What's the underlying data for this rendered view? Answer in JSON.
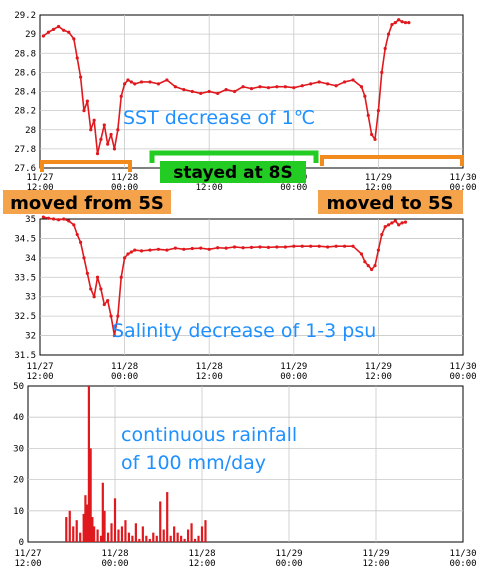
{
  "colors": {
    "series": "#e0191e",
    "annotation_blue": "#1e90ff",
    "bracket_orange": "#f28a1d",
    "label_orange": "#f5a34a",
    "label_green": "#22cc22",
    "grid": "#c8c8c8"
  },
  "x_ticks": [
    {
      "x": 0,
      "line1": "11/27",
      "line2": "12:00"
    },
    {
      "x": 0.5,
      "line1": "11/28",
      "line2": "00:00"
    },
    {
      "x": 1.0,
      "line1": "11/28",
      "line2": "12:00"
    },
    {
      "x": 1.5,
      "line1": "11/29",
      "line2": "00:00"
    },
    {
      "x": 2.0,
      "line1": "11/29",
      "line2": "12:00"
    },
    {
      "x": 2.5,
      "line1": "11/30",
      "line2": "00:00"
    }
  ],
  "x_ticks_bottom": [
    {
      "x": 0,
      "line1": "11/27",
      "line2": "12:00"
    },
    {
      "x": 0.5,
      "line1": "11/28",
      "line2": "00:00"
    },
    {
      "x": 1.0,
      "line1": "11/28",
      "line2": "12:00"
    },
    {
      "x": 1.5,
      "line1": "11/29",
      "line2": "00:00"
    },
    {
      "x": 2.0,
      "line1": "11/29",
      "line2": "12:00"
    },
    {
      "x": 2.5,
      "line1": "11/30",
      "line2": "00:00"
    }
  ],
  "annotations": {
    "sst": "SST decrease of 1℃",
    "salinity": "Salinity decrease of 1-3 psu",
    "rain_line1": "continuous rainfall",
    "rain_line2": "of 100 mm/day",
    "stayed": "stayed at 8S",
    "moved_from": "moved from 5S",
    "moved_to": "moved to 5S"
  },
  "chart_data": [
    {
      "type": "scatter",
      "ylim": [
        27.6,
        29.2
      ],
      "yticks": [
        "27.6",
        "27.8",
        "28",
        "28.2",
        "28.4",
        "28.6",
        "28.8",
        "29",
        "29.2"
      ],
      "xlim": [
        0,
        2.5
      ],
      "series": [
        {
          "x": [
            0.02,
            0.05,
            0.08,
            0.11,
            0.14,
            0.17,
            0.2,
            0.22,
            0.24,
            0.26,
            0.28,
            0.3,
            0.32,
            0.34,
            0.36,
            0.38,
            0.4,
            0.42,
            0.44,
            0.46,
            0.48,
            0.5,
            0.52,
            0.54,
            0.56,
            0.6,
            0.65,
            0.7,
            0.75,
            0.8,
            0.85,
            0.9,
            0.95,
            1.0,
            1.05,
            1.1,
            1.15,
            1.2,
            1.25,
            1.3,
            1.35,
            1.4,
            1.45,
            1.5,
            1.55,
            1.6,
            1.65,
            1.7,
            1.75,
            1.8,
            1.85,
            1.9,
            1.92,
            1.94,
            1.96,
            1.98,
            2.0,
            2.02,
            2.04,
            2.06,
            2.08,
            2.1,
            2.12,
            2.14,
            2.16,
            2.18
          ],
          "y": [
            28.98,
            29.02,
            29.05,
            29.08,
            29.04,
            29.02,
            28.95,
            28.75,
            28.55,
            28.2,
            28.3,
            28.0,
            28.1,
            27.75,
            27.9,
            28.05,
            27.85,
            27.95,
            27.8,
            28.0,
            28.35,
            28.48,
            28.52,
            28.5,
            28.48,
            28.5,
            28.5,
            28.48,
            28.52,
            28.45,
            28.42,
            28.4,
            28.38,
            28.4,
            28.38,
            28.42,
            28.4,
            28.45,
            28.43,
            28.45,
            28.44,
            28.45,
            28.45,
            28.44,
            28.46,
            28.48,
            28.5,
            28.48,
            28.46,
            28.5,
            28.52,
            28.45,
            28.35,
            28.15,
            27.95,
            27.9,
            28.2,
            28.6,
            28.85,
            29.0,
            29.1,
            29.12,
            29.15,
            29.13,
            29.12,
            29.12
          ]
        }
      ]
    },
    {
      "type": "scatter",
      "ylim": [
        31.5,
        35.0
      ],
      "yticks": [
        "31.5",
        "32",
        "32.5",
        "33",
        "33.5",
        "34",
        "34.5",
        "35"
      ],
      "xlim": [
        0,
        2.5
      ],
      "series": [
        {
          "x": [
            0.02,
            0.05,
            0.08,
            0.11,
            0.14,
            0.17,
            0.2,
            0.22,
            0.24,
            0.26,
            0.28,
            0.3,
            0.32,
            0.34,
            0.36,
            0.38,
            0.4,
            0.42,
            0.44,
            0.46,
            0.48,
            0.5,
            0.52,
            0.54,
            0.56,
            0.6,
            0.65,
            0.7,
            0.75,
            0.8,
            0.85,
            0.9,
            0.95,
            1.0,
            1.05,
            1.1,
            1.15,
            1.2,
            1.25,
            1.3,
            1.35,
            1.4,
            1.45,
            1.5,
            1.55,
            1.6,
            1.65,
            1.7,
            1.75,
            1.8,
            1.85,
            1.9,
            1.92,
            1.94,
            1.96,
            1.98,
            2.0,
            2.02,
            2.04,
            2.06,
            2.08,
            2.1,
            2.12,
            2.14,
            2.16
          ],
          "y": [
            35.05,
            35.02,
            35.0,
            34.98,
            35.0,
            34.95,
            34.85,
            34.6,
            34.4,
            34.0,
            33.6,
            33.2,
            33.0,
            33.5,
            33.2,
            32.8,
            32.9,
            32.5,
            32.0,
            32.5,
            33.5,
            34.0,
            34.1,
            34.15,
            34.2,
            34.18,
            34.2,
            34.22,
            34.2,
            34.25,
            34.22,
            34.24,
            34.25,
            34.22,
            34.26,
            34.25,
            34.28,
            34.26,
            34.27,
            34.28,
            34.27,
            34.28,
            34.28,
            34.3,
            34.3,
            34.3,
            34.3,
            34.28,
            34.3,
            34.3,
            34.3,
            34.1,
            33.9,
            33.8,
            33.7,
            33.8,
            34.2,
            34.6,
            34.8,
            34.85,
            34.9,
            34.95,
            34.85,
            34.9,
            34.92
          ]
        }
      ]
    },
    {
      "type": "bar",
      "ylim": [
        0,
        50
      ],
      "yticks": [
        "0",
        "10",
        "20",
        "30",
        "40",
        "50"
      ],
      "xlim": [
        0,
        2.5
      ],
      "x": [
        0.22,
        0.24,
        0.26,
        0.28,
        0.3,
        0.32,
        0.33,
        0.34,
        0.35,
        0.36,
        0.37,
        0.38,
        0.4,
        0.42,
        0.43,
        0.44,
        0.46,
        0.48,
        0.5,
        0.52,
        0.54,
        0.56,
        0.58,
        0.6,
        0.62,
        0.64,
        0.66,
        0.68,
        0.7,
        0.72,
        0.74,
        0.76,
        0.78,
        0.8,
        0.82,
        0.84,
        0.86,
        0.88,
        0.9,
        0.92,
        0.94,
        0.96,
        0.98,
        1.0,
        1.02
      ],
      "values": [
        8,
        10,
        5,
        7,
        3,
        9,
        15,
        12,
        50,
        30,
        8,
        5,
        4,
        2,
        19,
        10,
        3,
        6,
        14,
        4,
        5,
        7,
        3,
        2,
        6,
        1,
        5,
        2,
        1,
        3,
        2,
        13,
        4,
        16,
        2,
        5,
        3,
        2,
        1,
        4,
        6,
        1,
        2,
        5,
        7
      ]
    }
  ]
}
